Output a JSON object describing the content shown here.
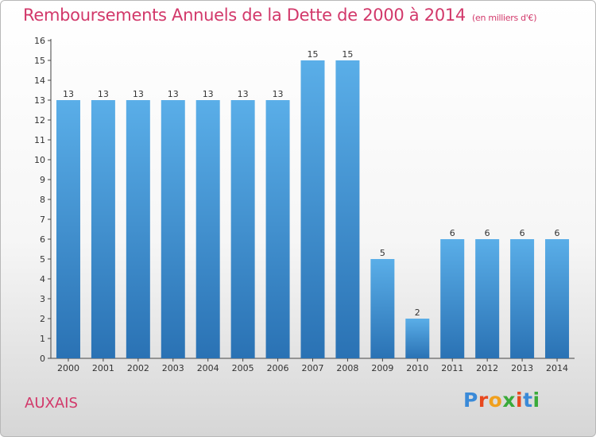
{
  "header": {
    "title": "Remboursements Annuels de la Dette de 2000 à 2014",
    "unit": "(en milliers d'€)"
  },
  "footer": {
    "place": "AUXAIS",
    "logo_letters": [
      "P",
      "r",
      "o",
      "x",
      "i",
      "t",
      "i"
    ]
  },
  "colors": {
    "title": "#d2386a",
    "bar_top": "#5aaee8",
    "bar_bottom": "#2a72b4",
    "logo": [
      "#3a8ad8",
      "#e8481e",
      "#f0a01e",
      "#3aaa3a",
      "#e8481e",
      "#3a8ad8",
      "#3aaa3a"
    ]
  },
  "chart_data": {
    "type": "bar",
    "categories": [
      "2000",
      "2001",
      "2002",
      "2003",
      "2004",
      "2005",
      "2006",
      "2007",
      "2008",
      "2009",
      "2010",
      "2011",
      "2012",
      "2013",
      "2014"
    ],
    "values": [
      13,
      13,
      13,
      13,
      13,
      13,
      13,
      15,
      15,
      5,
      2,
      6,
      6,
      6,
      6
    ],
    "ylim": [
      0,
      16
    ],
    "yticks": [
      0,
      1,
      2,
      3,
      4,
      5,
      6,
      7,
      8,
      9,
      10,
      11,
      12,
      13,
      14,
      15,
      16
    ],
    "grid": false,
    "data_labels": true
  }
}
